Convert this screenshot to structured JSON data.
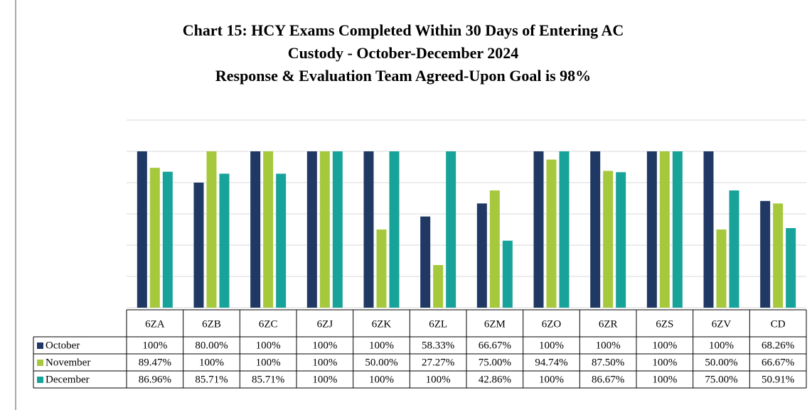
{
  "chart_data": {
    "type": "bar",
    "title": [
      "Chart 15: HCY Exams Completed Within 30 Days of Entering AC",
      "Custody - October-December 2024",
      "Response & Evaluation  Team Agreed-Upon  Goal is 98%"
    ],
    "categories": [
      "6ZA",
      "6ZB",
      "6ZC",
      "6ZJ",
      "6ZK",
      "6ZL",
      "6ZM",
      "6ZO",
      "6ZR",
      "6ZS",
      "6ZV",
      "CD"
    ],
    "series": [
      {
        "name": "October",
        "color": "#1f3864",
        "values": [
          100,
          80,
          100,
          100,
          100,
          58.33,
          66.67,
          100,
          100,
          100,
          100,
          68.26
        ],
        "value_labels": [
          "100%",
          "80.00%",
          "100%",
          "100%",
          "100%",
          "58.33%",
          "66.67%",
          "100%",
          "100%",
          "100%",
          "100%",
          "68.26%"
        ]
      },
      {
        "name": "November",
        "color": "#a6c83c",
        "values": [
          89.47,
          100,
          100,
          100,
          50,
          27.27,
          75,
          94.74,
          87.5,
          100,
          50,
          66.67
        ],
        "value_labels": [
          "89.47%",
          "100%",
          "100%",
          "100%",
          "50.00%",
          "27.27%",
          "75.00%",
          "94.74%",
          "87.50%",
          "100%",
          "50.00%",
          "66.67%"
        ]
      },
      {
        "name": "December",
        "color": "#17a39a",
        "values": [
          86.96,
          85.71,
          85.71,
          100,
          100,
          100,
          42.86,
          100,
          86.67,
          100,
          75,
          50.91
        ],
        "value_labels": [
          "86.96%",
          "85.71%",
          "85.71%",
          "100%",
          "100%",
          "100%",
          "42.86%",
          "100%",
          "86.67%",
          "100%",
          "75.00%",
          "50.91%"
        ]
      }
    ],
    "ylim": [
      0,
      120
    ],
    "yticks": [
      0,
      20,
      40,
      60,
      80,
      100,
      120
    ],
    "grid": true
  }
}
